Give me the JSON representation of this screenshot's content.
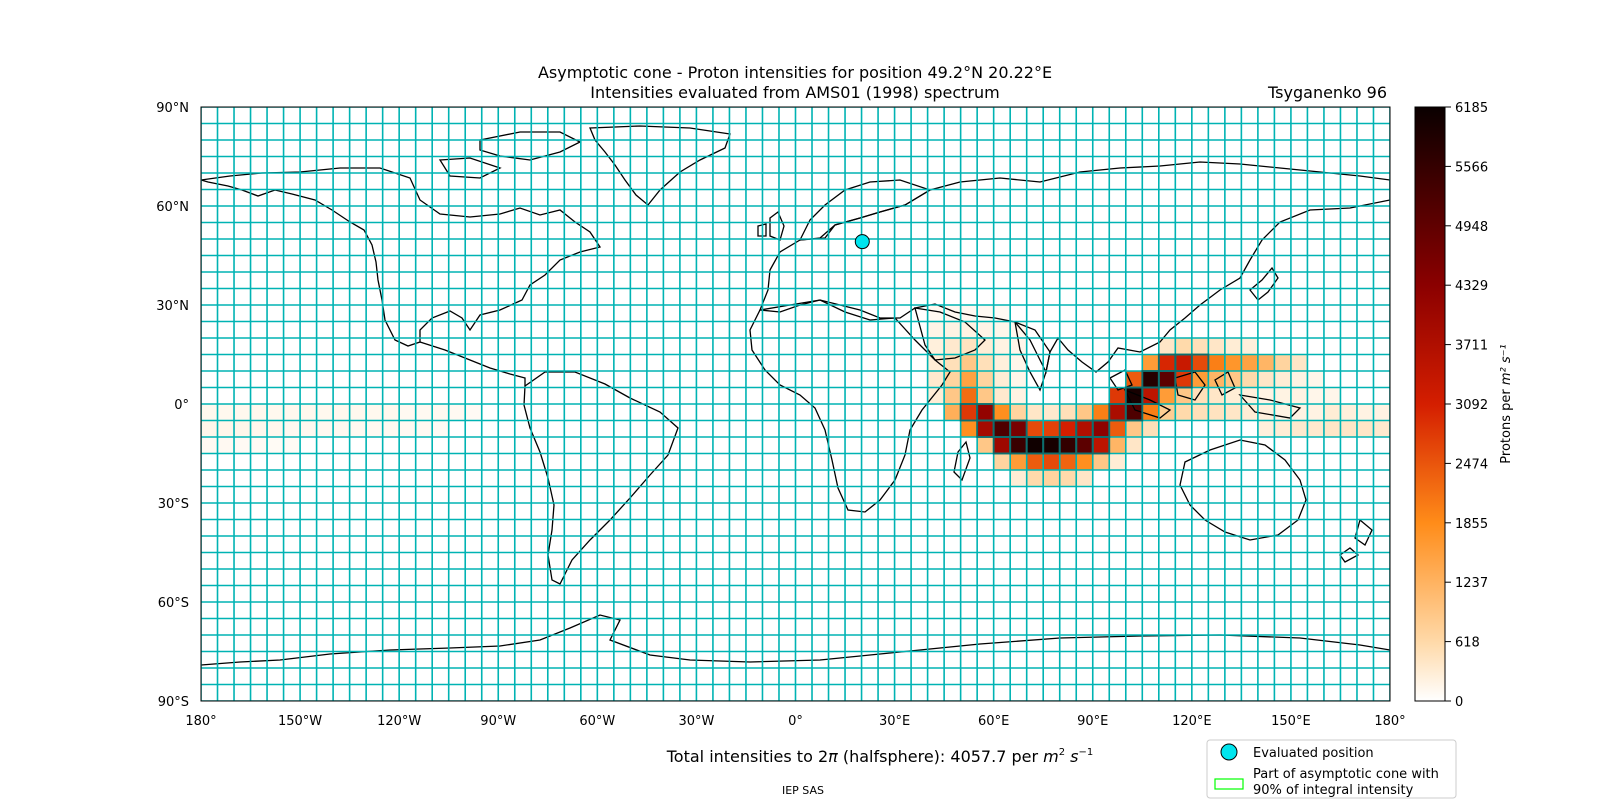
{
  "figure": {
    "title_line1": "Asymptotic cone - Proton intensities for position 49.2°N 20.22°E",
    "title_line2": "Intensities evaluated from AMS01 (1998) spectrum",
    "model_label": "Tsyganenko 96",
    "total_intensity_prefix": "Total intensities to 2",
    "total_intensity_pi": "π",
    "total_intensity_mid": " (halfsphere): 4057.7 per ",
    "total_intensity_unit_base1": "m",
    "total_intensity_unit_exp1": "2",
    "total_intensity_unit_base2": " s",
    "total_intensity_unit_exp2": "−1",
    "credit": "IEP SAS"
  },
  "map": {
    "lon_ticks": [
      "180°",
      "150°W",
      "120°W",
      "90°W",
      "60°W",
      "30°W",
      "0°",
      "30°E",
      "60°E",
      "90°E",
      "120°E",
      "150°E",
      "180°"
    ],
    "lat_ticks": [
      "90°N",
      "60°N",
      "30°N",
      "0°",
      "30°S",
      "60°S",
      "90°S"
    ],
    "grid_color": "#00b3b3",
    "land_outline_color": "#000000",
    "evaluated_position": {
      "lat": 49.2,
      "lon": 20.22,
      "color": "#00e5ee"
    },
    "cell_size_deg": {
      "lon": 5,
      "lat": 5
    }
  },
  "colorbar": {
    "label_base": "Protons per ",
    "label_unit": "m² s⁻¹",
    "ticks": [
      "6185",
      "5566",
      "4948",
      "4329",
      "3711",
      "3092",
      "2474",
      "1855",
      "1237",
      "618",
      "0"
    ],
    "min": 0,
    "max": 6185,
    "colormap": "gist_heat_r"
  },
  "legend": {
    "evaluated_position": "Evaluated position",
    "cone_line1": "Part of asymptotic cone with",
    "cone_line2": "90% of integral intensity",
    "cone_color": "#00ff00"
  },
  "chart_data": {
    "type": "heatmap",
    "cell_deg": 5,
    "cells": [
      {
        "lon": -180,
        "lat": -5,
        "v": 120
      },
      {
        "lon": -175,
        "lat": -5,
        "v": 120
      },
      {
        "lon": -170,
        "lat": -5,
        "v": 120
      },
      {
        "lon": -165,
        "lat": -5,
        "v": 120
      },
      {
        "lon": -160,
        "lat": -5,
        "v": 120
      },
      {
        "lon": -155,
        "lat": -5,
        "v": 120
      },
      {
        "lon": -150,
        "lat": -5,
        "v": 120
      },
      {
        "lon": -145,
        "lat": -5,
        "v": 120
      },
      {
        "lon": -140,
        "lat": -5,
        "v": 120
      },
      {
        "lon": -135,
        "lat": -5,
        "v": 120
      },
      {
        "lon": -130,
        "lat": -5,
        "v": 120
      },
      {
        "lon": -125,
        "lat": -5,
        "v": 120
      },
      {
        "lon": -120,
        "lat": -5,
        "v": 100
      },
      {
        "lon": -115,
        "lat": -5,
        "v": 100
      },
      {
        "lon": -110,
        "lat": -5,
        "v": 100
      },
      {
        "lon": -105,
        "lat": -5,
        "v": 90
      },
      {
        "lon": -100,
        "lat": -5,
        "v": 80
      },
      {
        "lon": -180,
        "lat": -10,
        "v": 150
      },
      {
        "lon": -175,
        "lat": -10,
        "v": 150
      },
      {
        "lon": -170,
        "lat": -10,
        "v": 150
      },
      {
        "lon": -165,
        "lat": -10,
        "v": 130
      },
      {
        "lon": -160,
        "lat": -10,
        "v": 130
      },
      {
        "lon": -155,
        "lat": -10,
        "v": 110
      },
      {
        "lon": -150,
        "lat": -10,
        "v": 110
      },
      {
        "lon": -145,
        "lat": -10,
        "v": 110
      },
      {
        "lon": -140,
        "lat": -10,
        "v": 110
      },
      {
        "lon": -135,
        "lat": -10,
        "v": 100
      },
      {
        "lon": -130,
        "lat": -10,
        "v": 100
      },
      {
        "lon": -125,
        "lat": -10,
        "v": 100
      },
      {
        "lon": -120,
        "lat": -10,
        "v": 90
      },
      {
        "lon": -115,
        "lat": -10,
        "v": 90
      },
      {
        "lon": -110,
        "lat": -10,
        "v": 80
      },
      {
        "lon": -180,
        "lat": -15,
        "v": 90
      },
      {
        "lon": -175,
        "lat": -15,
        "v": 90
      },
      {
        "lon": -170,
        "lat": -15,
        "v": 80
      },
      {
        "lon": -165,
        "lat": -15,
        "v": 80
      },
      {
        "lon": -160,
        "lat": -15,
        "v": 70
      },
      {
        "lon": -155,
        "lat": -15,
        "v": 70
      },
      {
        "lon": 40,
        "lat": 25,
        "v": 100
      },
      {
        "lon": 45,
        "lat": 25,
        "v": 100
      },
      {
        "lon": 50,
        "lat": 25,
        "v": 100
      },
      {
        "lon": 55,
        "lat": 25,
        "v": 100
      },
      {
        "lon": 60,
        "lat": 25,
        "v": 80
      },
      {
        "lon": 40,
        "lat": 20,
        "v": 180
      },
      {
        "lon": 45,
        "lat": 20,
        "v": 200
      },
      {
        "lon": 50,
        "lat": 20,
        "v": 200
      },
      {
        "lon": 55,
        "lat": 20,
        "v": 180
      },
      {
        "lon": 60,
        "lat": 20,
        "v": 150
      },
      {
        "lon": 65,
        "lat": 20,
        "v": 120
      },
      {
        "lon": 40,
        "lat": 15,
        "v": 250
      },
      {
        "lon": 45,
        "lat": 15,
        "v": 350
      },
      {
        "lon": 50,
        "lat": 15,
        "v": 450
      },
      {
        "lon": 55,
        "lat": 15,
        "v": 300
      },
      {
        "lon": 60,
        "lat": 15,
        "v": 200
      },
      {
        "lon": 65,
        "lat": 15,
        "v": 150
      },
      {
        "lon": 40,
        "lat": 10,
        "v": 300
      },
      {
        "lon": 45,
        "lat": 10,
        "v": 500
      },
      {
        "lon": 50,
        "lat": 10,
        "v": 900
      },
      {
        "lon": 55,
        "lat": 10,
        "v": 500
      },
      {
        "lon": 60,
        "lat": 10,
        "v": 250
      },
      {
        "lon": 65,
        "lat": 10,
        "v": 150
      },
      {
        "lon": 40,
        "lat": 5,
        "v": 350
      },
      {
        "lon": 45,
        "lat": 5,
        "v": 700
      },
      {
        "lon": 50,
        "lat": 5,
        "v": 1500
      },
      {
        "lon": 55,
        "lat": 5,
        "v": 700
      },
      {
        "lon": 60,
        "lat": 5,
        "v": 300
      },
      {
        "lon": 65,
        "lat": 5,
        "v": 150
      },
      {
        "lon": 40,
        "lat": 0,
        "v": 300
      },
      {
        "lon": 45,
        "lat": 0,
        "v": 900
      },
      {
        "lon": 50,
        "lat": 0,
        "v": 2200
      },
      {
        "lon": 55,
        "lat": 0,
        "v": 900
      },
      {
        "lon": 60,
        "lat": 0,
        "v": 350
      },
      {
        "lon": 65,
        "lat": 0,
        "v": 200
      },
      {
        "lon": 45,
        "lat": -5,
        "v": 1300
      },
      {
        "lon": 50,
        "lat": -5,
        "v": 2800
      },
      {
        "lon": 55,
        "lat": -5,
        "v": 4200
      },
      {
        "lon": 60,
        "lat": -5,
        "v": 1800
      },
      {
        "lon": 65,
        "lat": -5,
        "v": 700
      },
      {
        "lon": 70,
        "lat": -5,
        "v": 400
      },
      {
        "lon": 75,
        "lat": -5,
        "v": 350
      },
      {
        "lon": 80,
        "lat": -5,
        "v": 500
      },
      {
        "lon": 85,
        "lat": -5,
        "v": 900
      },
      {
        "lon": 90,
        "lat": -5,
        "v": 2000
      },
      {
        "lon": 95,
        "lat": -5,
        "v": 3800
      },
      {
        "lon": 100,
        "lat": -5,
        "v": 5200
      },
      {
        "lon": 105,
        "lat": -5,
        "v": 2000
      },
      {
        "lon": 110,
        "lat": -5,
        "v": 800
      },
      {
        "lon": 115,
        "lat": -5,
        "v": 600
      },
      {
        "lon": 120,
        "lat": -5,
        "v": 500
      },
      {
        "lon": 125,
        "lat": -5,
        "v": 450
      },
      {
        "lon": 130,
        "lat": -5,
        "v": 400
      },
      {
        "lon": 135,
        "lat": -5,
        "v": 300
      },
      {
        "lon": 140,
        "lat": -5,
        "v": 250
      },
      {
        "lon": 145,
        "lat": -5,
        "v": 200
      },
      {
        "lon": 150,
        "lat": -5,
        "v": 200
      },
      {
        "lon": 155,
        "lat": -5,
        "v": 200
      },
      {
        "lon": 160,
        "lat": -5,
        "v": 300
      },
      {
        "lon": 165,
        "lat": -5,
        "v": 250
      },
      {
        "lon": 170,
        "lat": -5,
        "v": 200
      },
      {
        "lon": 175,
        "lat": -5,
        "v": 200
      },
      {
        "lon": 50,
        "lat": -10,
        "v": 1800
      },
      {
        "lon": 55,
        "lat": -10,
        "v": 3900
      },
      {
        "lon": 60,
        "lat": -10,
        "v": 5200
      },
      {
        "lon": 65,
        "lat": -10,
        "v": 4600
      },
      {
        "lon": 70,
        "lat": -10,
        "v": 2600
      },
      {
        "lon": 75,
        "lat": -10,
        "v": 2700
      },
      {
        "lon": 80,
        "lat": -10,
        "v": 3100
      },
      {
        "lon": 85,
        "lat": -10,
        "v": 3700
      },
      {
        "lon": 90,
        "lat": -10,
        "v": 4300
      },
      {
        "lon": 95,
        "lat": -10,
        "v": 2400
      },
      {
        "lon": 100,
        "lat": -10,
        "v": 900
      },
      {
        "lon": 105,
        "lat": -10,
        "v": 500
      },
      {
        "lon": 140,
        "lat": -10,
        "v": 250
      },
      {
        "lon": 145,
        "lat": -10,
        "v": 300
      },
      {
        "lon": 150,
        "lat": -10,
        "v": 350
      },
      {
        "lon": 155,
        "lat": -10,
        "v": 350
      },
      {
        "lon": 160,
        "lat": -10,
        "v": 400
      },
      {
        "lon": 165,
        "lat": -10,
        "v": 400
      },
      {
        "lon": 170,
        "lat": -10,
        "v": 400
      },
      {
        "lon": 175,
        "lat": -10,
        "v": 350
      },
      {
        "lon": 55,
        "lat": -15,
        "v": 900
      },
      {
        "lon": 60,
        "lat": -15,
        "v": 4000
      },
      {
        "lon": 65,
        "lat": -15,
        "v": 5500
      },
      {
        "lon": 70,
        "lat": -15,
        "v": 6100
      },
      {
        "lon": 75,
        "lat": -15,
        "v": 6000
      },
      {
        "lon": 80,
        "lat": -15,
        "v": 5600
      },
      {
        "lon": 85,
        "lat": -15,
        "v": 5000
      },
      {
        "lon": 90,
        "lat": -15,
        "v": 3500
      },
      {
        "lon": 95,
        "lat": -15,
        "v": 1200
      },
      {
        "lon": 100,
        "lat": -15,
        "v": 400
      },
      {
        "lon": 60,
        "lat": -20,
        "v": 700
      },
      {
        "lon": 65,
        "lat": -20,
        "v": 1600
      },
      {
        "lon": 70,
        "lat": -20,
        "v": 2400
      },
      {
        "lon": 75,
        "lat": -20,
        "v": 2600
      },
      {
        "lon": 80,
        "lat": -20,
        "v": 2300
      },
      {
        "lon": 85,
        "lat": -20,
        "v": 1800
      },
      {
        "lon": 90,
        "lat": -20,
        "v": 900
      },
      {
        "lon": 95,
        "lat": -20,
        "v": 300
      },
      {
        "lon": 65,
        "lat": -25,
        "v": 300
      },
      {
        "lon": 70,
        "lat": -25,
        "v": 600
      },
      {
        "lon": 75,
        "lat": -25,
        "v": 700
      },
      {
        "lon": 80,
        "lat": -25,
        "v": 600
      },
      {
        "lon": 85,
        "lat": -25,
        "v": 400
      },
      {
        "lon": 95,
        "lat": 0,
        "v": 2800
      },
      {
        "lon": 100,
        "lat": 0,
        "v": 6000
      },
      {
        "lon": 105,
        "lat": 0,
        "v": 3500
      },
      {
        "lon": 110,
        "lat": 0,
        "v": 1600
      },
      {
        "lon": 115,
        "lat": 0,
        "v": 900
      },
      {
        "lon": 120,
        "lat": 0,
        "v": 500
      },
      {
        "lon": 125,
        "lat": 0,
        "v": 400
      },
      {
        "lon": 130,
        "lat": 0,
        "v": 300
      },
      {
        "lon": 135,
        "lat": 0,
        "v": 250
      },
      {
        "lon": 140,
        "lat": 0,
        "v": 200
      },
      {
        "lon": 145,
        "lat": 0,
        "v": 200
      },
      {
        "lon": 150,
        "lat": 0,
        "v": 200
      },
      {
        "lon": 155,
        "lat": 0,
        "v": 150
      },
      {
        "lon": 160,
        "lat": 0,
        "v": 150
      },
      {
        "lon": 100,
        "lat": 5,
        "v": 2400
      },
      {
        "lon": 105,
        "lat": 5,
        "v": 5800
      },
      {
        "lon": 110,
        "lat": 5,
        "v": 5000
      },
      {
        "lon": 115,
        "lat": 5,
        "v": 2800
      },
      {
        "lon": 120,
        "lat": 5,
        "v": 1600
      },
      {
        "lon": 125,
        "lat": 5,
        "v": 1200
      },
      {
        "lon": 130,
        "lat": 5,
        "v": 900
      },
      {
        "lon": 135,
        "lat": 5,
        "v": 600
      },
      {
        "lon": 140,
        "lat": 5,
        "v": 400
      },
      {
        "lon": 145,
        "lat": 5,
        "v": 300
      },
      {
        "lon": 150,
        "lat": 5,
        "v": 200
      },
      {
        "lon": 155,
        "lat": 5,
        "v": 150
      },
      {
        "lon": 105,
        "lat": 10,
        "v": 1600
      },
      {
        "lon": 110,
        "lat": 10,
        "v": 3000
      },
      {
        "lon": 115,
        "lat": 10,
        "v": 3300
      },
      {
        "lon": 120,
        "lat": 10,
        "v": 2600
      },
      {
        "lon": 125,
        "lat": 10,
        "v": 2000
      },
      {
        "lon": 130,
        "lat": 10,
        "v": 1700
      },
      {
        "lon": 135,
        "lat": 10,
        "v": 1500
      },
      {
        "lon": 140,
        "lat": 10,
        "v": 1200
      },
      {
        "lon": 145,
        "lat": 10,
        "v": 700
      },
      {
        "lon": 150,
        "lat": 10,
        "v": 400
      },
      {
        "lon": 110,
        "lat": 15,
        "v": 400
      },
      {
        "lon": 115,
        "lat": 15,
        "v": 600
      },
      {
        "lon": 120,
        "lat": 15,
        "v": 500
      },
      {
        "lon": 125,
        "lat": 15,
        "v": 400
      },
      {
        "lon": 130,
        "lat": 15,
        "v": 300
      },
      {
        "lon": 135,
        "lat": 15,
        "v": 250
      }
    ],
    "cone_cells": [
      {
        "lon": 50,
        "lat": -5
      },
      {
        "lon": 55,
        "lat": -5
      },
      {
        "lon": 55,
        "lat": -10
      },
      {
        "lon": 60,
        "lat": -10
      },
      {
        "lon": 65,
        "lat": -10
      },
      {
        "lon": 60,
        "lat": -15
      },
      {
        "lon": 65,
        "lat": -15
      },
      {
        "lon": 70,
        "lat": -15
      },
      {
        "lon": 75,
        "lat": -15
      },
      {
        "lon": 80,
        "lat": -15
      },
      {
        "lon": 85,
        "lat": -15
      },
      {
        "lon": 90,
        "lat": -15
      },
      {
        "lon": 80,
        "lat": -10
      },
      {
        "lon": 85,
        "lat": -10
      },
      {
        "lon": 90,
        "lat": -10
      },
      {
        "lon": 95,
        "lat": -5
      },
      {
        "lon": 100,
        "lat": -5
      },
      {
        "lon": 100,
        "lat": 0
      },
      {
        "lon": 105,
        "lat": 0
      },
      {
        "lon": 105,
        "lat": 5
      },
      {
        "lon": 110,
        "lat": 5
      },
      {
        "lon": 115,
        "lat": 5
      },
      {
        "lon": 110,
        "lat": 10
      },
      {
        "lon": 115,
        "lat": 10
      },
      {
        "lon": 120,
        "lat": 10
      }
    ]
  }
}
